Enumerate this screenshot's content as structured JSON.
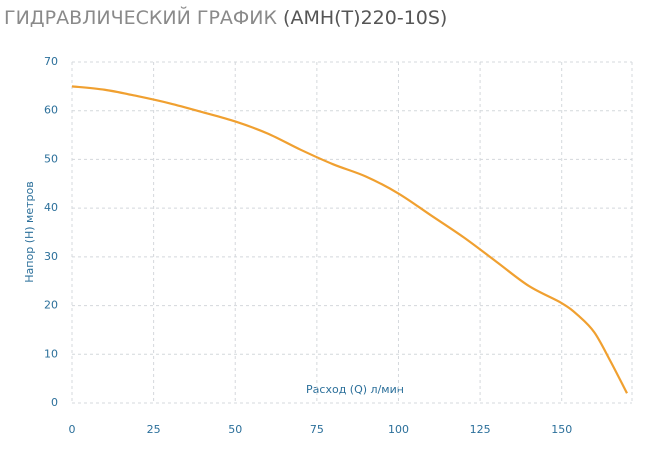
{
  "chart_data": {
    "type": "line",
    "title": "ГИДРАВЛИЧЕСКИЙ ГРАФИК",
    "subtitle": "(АМН(Т)220-10S)",
    "x_label": "Расход (Q) л/мин",
    "y_label": "Напор (H) метров",
    "x": [
      0,
      10,
      20,
      30,
      40,
      50,
      60,
      70,
      80,
      90,
      100,
      110,
      120,
      130,
      140,
      150,
      155,
      160,
      165,
      170
    ],
    "values": [
      65,
      64.3,
      63,
      61.5,
      59.7,
      57.8,
      55.3,
      52,
      49,
      46.5,
      43,
      38.5,
      34,
      29,
      24,
      20.5,
      18,
      14.5,
      8.5,
      2
    ],
    "color": "#f0a030",
    "xlim": [
      0,
      170
    ],
    "ylim": [
      0,
      70
    ],
    "xticks": [
      0,
      25,
      50,
      75,
      100,
      125,
      150
    ],
    "yticks": [
      0,
      10,
      20,
      30,
      40,
      50,
      60,
      70
    ],
    "grid": true
  }
}
